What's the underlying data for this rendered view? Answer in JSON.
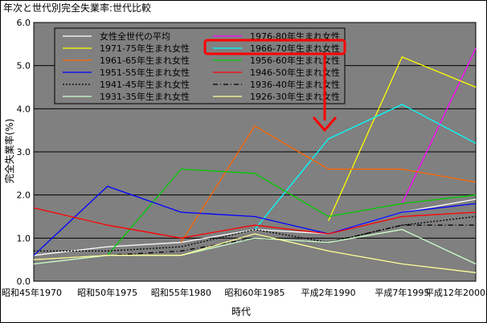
{
  "chart_data": {
    "type": "line",
    "title": "年次と世代別完全失業率:世代比較",
    "xlabel": "時代",
    "ylabel": "完全失業率(%)",
    "ylim": [
      0,
      6
    ],
    "yticks": [
      "0.0",
      "1.0",
      "2.0",
      "3.0",
      "4.0",
      "5.0",
      "6.0"
    ],
    "categories": [
      "昭和45年1970",
      "昭和50年1975",
      "昭和55年1980",
      "昭和60年1985",
      "平成2年1990",
      "平成7年1995",
      "平成12年2000"
    ],
    "grid": "horizontal",
    "legend_position": "top-left",
    "plot_background": "#808080",
    "series": [
      {
        "name": "女性全世代の平均",
        "color": "#ffffff",
        "dash": "solid",
        "values": [
          0.6,
          0.8,
          0.9,
          1.2,
          1.1,
          1.6,
          1.9
        ]
      },
      {
        "name": "1976-80年生まれ女性",
        "color": "#ff00ff",
        "dash": "solid",
        "values": [
          null,
          null,
          null,
          null,
          null,
          1.8,
          5.4
        ]
      },
      {
        "name": "1971-75年生まれ女性",
        "color": "#ffff00",
        "dash": "solid",
        "values": [
          null,
          null,
          null,
          null,
          1.4,
          5.2,
          4.5
        ]
      },
      {
        "name": "1966-70年生まれ女性",
        "color": "#00ffff",
        "dash": "solid",
        "values": [
          null,
          null,
          null,
          1.2,
          3.3,
          4.1,
          3.2
        ]
      },
      {
        "name": "1961-65年生まれ女性",
        "color": "#ff6600",
        "dash": "solid",
        "values": [
          null,
          null,
          0.9,
          3.6,
          2.6,
          2.6,
          2.3
        ]
      },
      {
        "name": "1956-60年生まれ女性",
        "color": "#00cc00",
        "dash": "solid",
        "values": [
          null,
          0.6,
          2.6,
          2.5,
          1.5,
          1.8,
          2.0
        ]
      },
      {
        "name": "1951-55年生まれ女性",
        "color": "#0000ff",
        "dash": "solid",
        "values": [
          0.6,
          2.2,
          1.6,
          1.5,
          1.1,
          1.6,
          1.8
        ]
      },
      {
        "name": "1946-50年生まれ女性",
        "color": "#ff0000",
        "dash": "solid",
        "values": [
          1.7,
          1.3,
          1.0,
          1.3,
          1.1,
          1.5,
          1.6
        ]
      },
      {
        "name": "1941-45年生まれ女性",
        "color": "#000000",
        "dash": "dot",
        "values": [
          0.7,
          0.7,
          0.8,
          1.2,
          0.9,
          1.3,
          1.5
        ]
      },
      {
        "name": "1936-40年生まれ女性",
        "color": "#000000",
        "dash": "dashdot",
        "values": [
          0.5,
          0.6,
          0.7,
          1.0,
          0.9,
          1.3,
          1.3
        ]
      },
      {
        "name": "1931-35年生まれ女性",
        "color": "#ccffcc",
        "dash": "solid",
        "values": [
          0.4,
          0.6,
          0.6,
          1.0,
          0.9,
          1.2,
          0.4
        ]
      },
      {
        "name": "1926-30年生まれ女性",
        "color": "#ffff99",
        "dash": "solid",
        "values": [
          0.5,
          0.6,
          0.6,
          1.1,
          0.7,
          0.4,
          0.2
        ]
      }
    ]
  }
}
